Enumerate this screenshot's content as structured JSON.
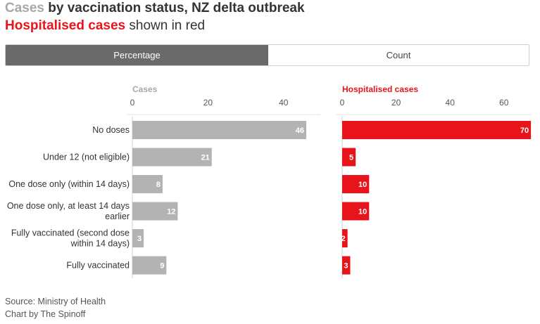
{
  "header": {
    "title_highlight": "Cases",
    "title_rest": " by vaccination status, NZ delta outbreak",
    "subtitle_highlight": "Hospitalised cases",
    "subtitle_rest": " shown in red"
  },
  "toggle": {
    "options": [
      "Percentage",
      "Count"
    ],
    "selected": "Percentage"
  },
  "colors": {
    "cases": "#b3b3b3",
    "hospitalised": "#e8141c",
    "panel_label_cases": "#a8a8a8"
  },
  "chart_data": [
    {
      "type": "bar",
      "orientation": "horizontal",
      "title": "Cases",
      "categories": [
        "No doses",
        "Under 12 (not eligible)",
        "One dose only (within 14 days)",
        "One dose only, at least 14 days earlier",
        "Fully vaccinated (second dose within 14 days)",
        "Fully vaccinated"
      ],
      "values": [
        46,
        21,
        8,
        12,
        3,
        9
      ],
      "xticks": [
        0,
        20,
        40
      ],
      "xlim": [
        0,
        50
      ]
    },
    {
      "type": "bar",
      "orientation": "horizontal",
      "title": "Hospitalised cases",
      "categories": [
        "No doses",
        "Under 12 (not eligible)",
        "One dose only (within 14 days)",
        "One dose only, at least 14 days earlier",
        "Fully vaccinated (second dose within 14 days)",
        "Fully vaccinated"
      ],
      "values": [
        70,
        5,
        10,
        10,
        2,
        3
      ],
      "xticks": [
        0,
        20,
        40,
        60
      ],
      "xlim": [
        0,
        70
      ]
    }
  ],
  "footer": {
    "source": "Source: Ministry of Health",
    "credit": "Chart by The Spinoff"
  }
}
